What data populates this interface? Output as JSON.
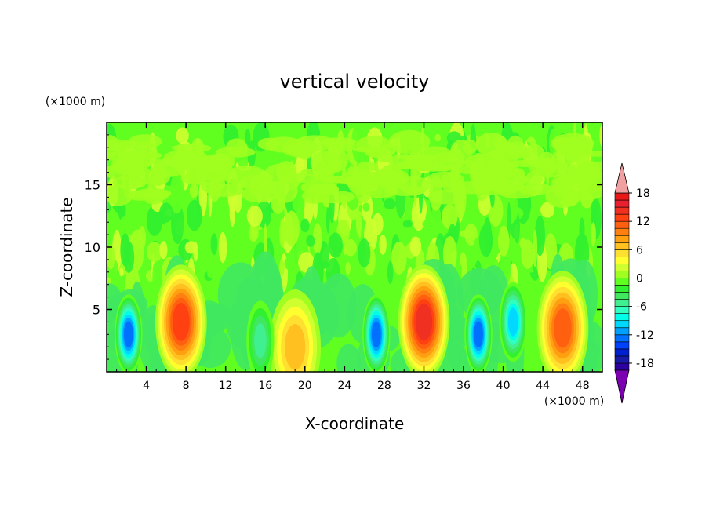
{
  "chart_data": {
    "type": "heatmap",
    "title": "vertical velocity",
    "xlabel": "X-coordinate",
    "ylabel": "Z-coordinate",
    "x_unit": "(×1000 m)",
    "y_unit": "(×1000 m)",
    "xlim": [
      0,
      50
    ],
    "ylim": [
      0,
      20
    ],
    "x_ticks": [
      4,
      8,
      12,
      16,
      20,
      24,
      28,
      32,
      36,
      40,
      44,
      48
    ],
    "x_tick_labels": [
      "4",
      "8",
      "12",
      "16",
      "20",
      "24",
      "28",
      "32",
      "36",
      "40",
      "44",
      "48"
    ],
    "y_ticks": [
      5,
      10,
      15
    ],
    "y_tick_labels": [
      "5",
      "10",
      "15"
    ],
    "colorbar": {
      "levels": [
        -21,
        -19.5,
        -18,
        -16.5,
        -15,
        -13.5,
        -12,
        -10.5,
        -9,
        -7.5,
        -6,
        -4.5,
        -3,
        -1.5,
        0,
        1.5,
        3,
        4.5,
        6,
        7.5,
        9,
        10.5,
        12,
        13.5,
        15,
        16.5,
        18,
        19.5,
        21
      ],
      "tick_values": [
        18,
        12,
        6,
        0,
        -6,
        -12,
        -18
      ],
      "tick_labels": [
        "18",
        "12",
        "6",
        "0",
        "-6",
        "-12",
        "-18"
      ],
      "colors": [
        "#7a00b0",
        "#2d00a0",
        "#1a1aa8",
        "#0020d0",
        "#0040ff",
        "#0070ff",
        "#00a0ff",
        "#00d8ff",
        "#00ffe8",
        "#30ffc0",
        "#40f090",
        "#40e860",
        "#30f030",
        "#60ff20",
        "#a0ff20",
        "#d0ff30",
        "#ffff30",
        "#ffe030",
        "#ffc020",
        "#ffa010",
        "#ff8010",
        "#ff6010",
        "#ff4010",
        "#f03020",
        "#e82030",
        "#e81818",
        "#f0a0a0"
      ],
      "extend": "both"
    },
    "cells": [
      {
        "label": "updraft",
        "x": 7.5,
        "z": 4.0,
        "w": 14
      },
      {
        "label": "downdraft",
        "x": 2.2,
        "z": 3.0,
        "w": -13
      },
      {
        "label": "updraft",
        "x": 19.0,
        "z": 2.0,
        "w": 8
      },
      {
        "label": "downdraft",
        "x": 15.5,
        "z": 2.5,
        "w": -6
      },
      {
        "label": "downdraft",
        "x": 27.2,
        "z": 3.0,
        "w": -14
      },
      {
        "label": "updraft",
        "x": 32.0,
        "z": 4.0,
        "w": 15
      },
      {
        "label": "downdraft",
        "x": 37.5,
        "z": 3.0,
        "w": -14
      },
      {
        "label": "downdraft",
        "x": 41.0,
        "z": 4.0,
        "w": -10
      },
      {
        "label": "updraft",
        "x": 46.0,
        "z": 3.5,
        "w": 12
      }
    ]
  }
}
